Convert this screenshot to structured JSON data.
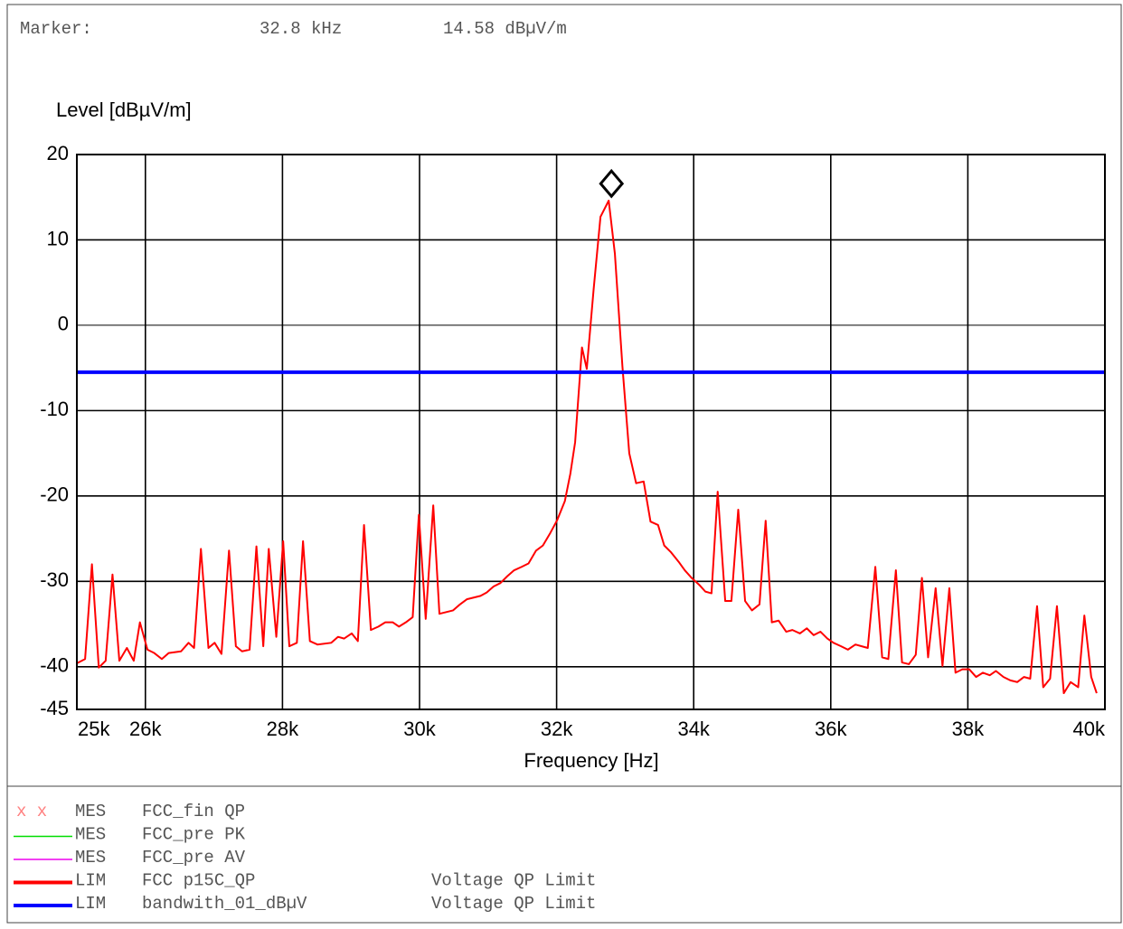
{
  "chart_data": {
    "type": "line",
    "marker": {
      "label": "Marker:",
      "frequency_label": "32.8 kHz",
      "level_label": "14.58 dBµV/m",
      "x": 32800,
      "y": 14.58
    },
    "ylabel": "Level [dBµV/m]",
    "xlabel": "Frequency [Hz]",
    "xlim": [
      25000,
      40000
    ],
    "ylim": [
      -45,
      20
    ],
    "xticks": [
      {
        "value": 25000,
        "label": "25k"
      },
      {
        "value": 26000,
        "label": "26k"
      },
      {
        "value": 28000,
        "label": "28k"
      },
      {
        "value": 30000,
        "label": "30k"
      },
      {
        "value": 32000,
        "label": "32k"
      },
      {
        "value": 34000,
        "label": "34k"
      },
      {
        "value": 36000,
        "label": "36k"
      },
      {
        "value": 38000,
        "label": "38k"
      },
      {
        "value": 40000,
        "label": "40k"
      }
    ],
    "yticks": [
      20,
      10,
      0,
      -10,
      -20,
      -30,
      -40,
      -45
    ],
    "grid": true,
    "series": [
      {
        "color": "#ff0000",
        "x": [
          25000,
          25120,
          25220,
          25320,
          25420,
          25520,
          25620,
          25730,
          25830,
          25920,
          26030,
          26130,
          26240,
          26340,
          26520,
          26630,
          26710,
          26810,
          26920,
          27010,
          27110,
          27220,
          27320,
          27410,
          27520,
          27620,
          27720,
          27800,
          27910,
          28010,
          28100,
          28210,
          28300,
          28400,
          28510,
          28710,
          28810,
          28900,
          29010,
          29100,
          29190,
          29290,
          29400,
          29500,
          29610,
          29700,
          29800,
          29900,
          29990,
          30090,
          30200,
          30290,
          30390,
          30490,
          30590,
          30690,
          30790,
          30890,
          30980,
          31080,
          31180,
          31280,
          31380,
          31490,
          31590,
          31700,
          31800,
          31910,
          32010,
          32120,
          32200,
          32270,
          32370,
          32440,
          32540,
          32640,
          32760,
          32850,
          32960,
          33060,
          33160,
          33270,
          33370,
          33480,
          33570,
          33670,
          33780,
          33870,
          33970,
          34080,
          34170,
          34260,
          34350,
          34460,
          34550,
          34650,
          34750,
          34850,
          34960,
          35050,
          35140,
          35240,
          35350,
          35440,
          35550,
          35650,
          35750,
          35850,
          35950,
          36040,
          36150,
          36250,
          36360,
          36450,
          36540,
          36650,
          36750,
          36840,
          36950,
          37040,
          37140,
          37240,
          37330,
          37420,
          37530,
          37630,
          37730,
          37820,
          37920,
          38020,
          38120,
          38220,
          38320,
          38410,
          38520,
          38620,
          38720,
          38820,
          38910,
          39010,
          39100,
          39200,
          39300,
          39400,
          39500,
          39610,
          39700,
          39800,
          39880
        ],
        "values": [
          -39.6,
          -39.1,
          -28.0,
          -40.1,
          -39.3,
          -29.2,
          -39.3,
          -37.8,
          -39.3,
          -34.8,
          -38.0,
          -38.4,
          -39.1,
          -38.4,
          -38.2,
          -37.2,
          -37.8,
          -26.2,
          -37.8,
          -37.2,
          -38.5,
          -26.4,
          -37.6,
          -38.2,
          -38.0,
          -25.9,
          -37.6,
          -26.2,
          -36.5,
          -25.3,
          -37.6,
          -37.2,
          -25.3,
          -37.0,
          -37.4,
          -37.2,
          -36.5,
          -36.7,
          -36.1,
          -37.0,
          -23.4,
          -35.7,
          -35.3,
          -34.8,
          -34.8,
          -35.3,
          -34.8,
          -34.2,
          -22.2,
          -34.4,
          -21.1,
          -33.8,
          -33.6,
          -33.4,
          -32.7,
          -32.1,
          -31.9,
          -31.7,
          -31.3,
          -30.6,
          -30.2,
          -29.4,
          -28.7,
          -28.3,
          -27.9,
          -26.4,
          -25.8,
          -24.3,
          -22.8,
          -20.6,
          -17.4,
          -13.7,
          -2.6,
          -5.1,
          4.2,
          12.7,
          14.6,
          8.4,
          -4.8,
          -15.0,
          -18.5,
          -18.3,
          -23.0,
          -23.4,
          -25.8,
          -26.6,
          -27.7,
          -28.7,
          -29.6,
          -30.4,
          -31.2,
          -31.4,
          -19.5,
          -32.3,
          -32.3,
          -21.6,
          -32.3,
          -33.4,
          -32.7,
          -22.9,
          -34.8,
          -34.6,
          -35.9,
          -35.7,
          -36.1,
          -35.5,
          -36.3,
          -35.9,
          -36.7,
          -37.2,
          -37.6,
          -38.0,
          -37.4,
          -37.6,
          -37.8,
          -28.3,
          -38.9,
          -39.1,
          -28.7,
          -39.5,
          -39.7,
          -38.6,
          -29.6,
          -38.9,
          -30.8,
          -39.9,
          -30.8,
          -40.7,
          -40.3,
          -40.3,
          -41.2,
          -40.7,
          -41.0,
          -40.5,
          -41.2,
          -41.6,
          -41.8,
          -41.2,
          -41.4,
          -32.9,
          -42.4,
          -41.4,
          -32.9,
          -43.1,
          -41.8,
          -42.4,
          -34.0,
          -41.2,
          -43.1
        ]
      },
      {
        "color": "#0000ff",
        "x": [
          25000,
          40000
        ],
        "values": [
          -5.5,
          -5.5
        ]
      }
    ],
    "legend": [
      {
        "symbol": "x x",
        "type": "MES",
        "name": "FCC_fin QP",
        "color": "#ff8080"
      },
      {
        "type": "MES",
        "name": "FCC_pre PK",
        "color": "#00dd00"
      },
      {
        "type": "MES",
        "name": "FCC_pre AV",
        "color": "#ee00ee"
      },
      {
        "type": "LIM",
        "name": "FCC p15C_QP",
        "note": "Voltage QP Limit",
        "color": "#ff0000"
      },
      {
        "type": "LIM",
        "name": "bandwith_01_dBµV",
        "note": "Voltage QP Limit",
        "color": "#0000ff"
      }
    ]
  }
}
